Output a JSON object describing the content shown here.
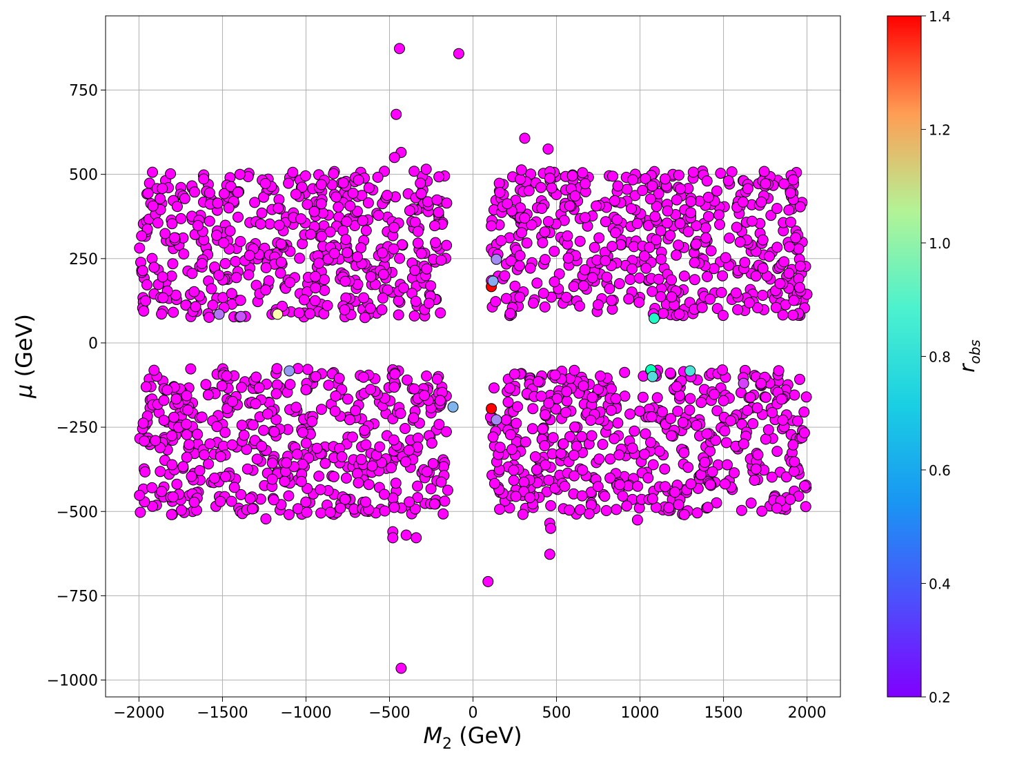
{
  "chart_data": {
    "type": "scatter",
    "title": "",
    "xlabel_main": "M",
    "xlabel_sub": "2",
    "xlabel_unit": " (GeV)",
    "ylabel_main": "μ",
    "ylabel_unit": " (GeV)",
    "xlim": [
      -2200,
      2200
    ],
    "ylim": [
      -1050,
      970
    ],
    "xticks": [
      -2000,
      -1500,
      -1000,
      -500,
      0,
      500,
      1000,
      1500,
      2000
    ],
    "xtick_labels": [
      "−2000",
      "−1500",
      "−1000",
      "−500",
      "0",
      "500",
      "1000",
      "1500",
      "2000"
    ],
    "yticks": [
      -1000,
      -750,
      -500,
      -250,
      0,
      250,
      500,
      750
    ],
    "ytick_labels": [
      "−1000",
      "−750",
      "−500",
      "−250",
      "0",
      "250",
      "500",
      "750"
    ],
    "grid": true,
    "colorbar": {
      "label_main": "r",
      "label_sub": "obs",
      "range": [
        0.2,
        1.4
      ],
      "ticks": [
        0.2,
        0.4,
        0.6,
        0.8,
        1.0,
        1.2,
        1.4
      ],
      "tick_labels": [
        "0.2",
        "0.4",
        "0.6",
        "0.8",
        "1.0",
        "1.2",
        "1.4"
      ],
      "colormap": "rainbow"
    },
    "point_edge_color": "#000000",
    "regions": [
      {
        "x": [
          -2000,
          -150
        ],
        "y": [
          75,
          510
        ],
        "count": 520,
        "r": 0.2
      },
      {
        "x": [
          -2000,
          -150
        ],
        "y": [
          -510,
          -75
        ],
        "count": 520,
        "r": 0.2
      },
      {
        "x": [
          110,
          2000
        ],
        "y": [
          80,
          510
        ],
        "count": 520,
        "r": 0.2
      },
      {
        "x": [
          110,
          2000
        ],
        "y": [
          -510,
          -80
        ],
        "count": 520,
        "r": 0.2
      }
    ],
    "points": [
      {
        "x": -440,
        "y": 873,
        "r": 0.2
      },
      {
        "x": -85,
        "y": 858,
        "r": 0.2
      },
      {
        "x": -460,
        "y": 678,
        "r": 0.2
      },
      {
        "x": -430,
        "y": 565,
        "r": 0.2
      },
      {
        "x": -470,
        "y": 550,
        "r": 0.2
      },
      {
        "x": -280,
        "y": 515,
        "r": 0.2
      },
      {
        "x": 310,
        "y": 607,
        "r": 0.2
      },
      {
        "x": 450,
        "y": 575,
        "r": 0.2
      },
      {
        "x": 290,
        "y": 513,
        "r": 0.2
      },
      {
        "x": 110,
        "y": 347,
        "r": 0.2
      },
      {
        "x": 110,
        "y": 185,
        "r": 0.2
      },
      {
        "x": 110,
        "y": 167,
        "r": 1.4
      },
      {
        "x": 140,
        "y": 248,
        "r": 0.42
      },
      {
        "x": 120,
        "y": 183,
        "r": 0.48
      },
      {
        "x": -1520,
        "y": 85,
        "r": 0.38
      },
      {
        "x": -1390,
        "y": 78,
        "r": 0.33
      },
      {
        "x": -1170,
        "y": 85,
        "r": 0.82
      },
      {
        "x": 1085,
        "y": 73,
        "r": 0.72
      },
      {
        "x": -1100,
        "y": -83,
        "r": 0.45
      },
      {
        "x": -120,
        "y": -190,
        "r": 0.5
      },
      {
        "x": 110,
        "y": -195,
        "r": 1.4
      },
      {
        "x": 105,
        "y": -220,
        "r": 0.2
      },
      {
        "x": 140,
        "y": -228,
        "r": 0.42
      },
      {
        "x": 1065,
        "y": -80,
        "r": 0.78
      },
      {
        "x": 1075,
        "y": -100,
        "r": 0.6
      },
      {
        "x": 1300,
        "y": -83,
        "r": 0.62
      },
      {
        "x": 1620,
        "y": -120,
        "r": 0.3
      },
      {
        "x": -230,
        "y": -478,
        "r": 0.2
      },
      {
        "x": -1240,
        "y": -522,
        "r": 0.2
      },
      {
        "x": -480,
        "y": -560,
        "r": 0.2
      },
      {
        "x": -400,
        "y": -570,
        "r": 0.2
      },
      {
        "x": -340,
        "y": -578,
        "r": 0.2
      },
      {
        "x": -480,
        "y": -578,
        "r": 0.2
      },
      {
        "x": 460,
        "y": -535,
        "r": 0.2
      },
      {
        "x": 465,
        "y": -550,
        "r": 0.2
      },
      {
        "x": 460,
        "y": -627,
        "r": 0.2
      },
      {
        "x": 985,
        "y": -525,
        "r": 0.2
      },
      {
        "x": 90,
        "y": -708,
        "r": 0.2
      },
      {
        "x": -430,
        "y": -965,
        "r": 0.2
      }
    ]
  }
}
